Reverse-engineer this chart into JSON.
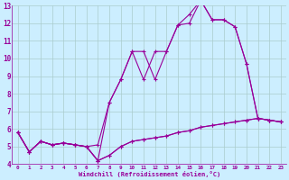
{
  "xlabel": "Windchill (Refroidissement éolien,°C)",
  "background_color": "#cceeff",
  "grid_color": "#aacccc",
  "line_color": "#990099",
  "xlim": [
    -0.5,
    23.5
  ],
  "ylim": [
    4,
    13
  ],
  "xticks": [
    0,
    1,
    2,
    3,
    4,
    5,
    6,
    7,
    8,
    9,
    10,
    11,
    12,
    13,
    14,
    15,
    16,
    17,
    18,
    19,
    20,
    21,
    22,
    23
  ],
  "yticks": [
    4,
    5,
    6,
    7,
    8,
    9,
    10,
    11,
    12,
    13
  ],
  "series1_x": [
    0,
    1,
    2,
    3,
    4,
    5,
    6,
    7,
    8,
    9,
    10,
    11,
    12,
    13,
    14,
    15,
    16,
    17,
    18,
    19,
    20,
    21,
    22,
    23
  ],
  "series1_y": [
    5.8,
    4.7,
    5.3,
    5.1,
    5.2,
    5.1,
    5.0,
    4.2,
    4.5,
    5.0,
    5.3,
    5.4,
    5.5,
    5.6,
    5.8,
    5.9,
    6.1,
    6.2,
    6.3,
    6.4,
    6.5,
    6.6,
    6.5,
    6.4
  ],
  "series2_x": [
    0,
    1,
    2,
    3,
    4,
    5,
    6,
    7,
    8,
    9,
    10,
    11,
    12,
    13,
    14,
    15,
    16,
    17,
    18,
    19,
    20,
    21,
    22,
    23
  ],
  "series2_y": [
    5.8,
    4.7,
    5.3,
    5.1,
    5.2,
    5.1,
    5.0,
    4.2,
    4.5,
    5.0,
    5.3,
    5.4,
    5.5,
    5.6,
    5.8,
    5.9,
    6.1,
    6.2,
    6.3,
    6.4,
    6.5,
    6.6,
    6.5,
    6.4
  ],
  "series3_x": [
    0,
    1,
    2,
    3,
    4,
    5,
    6,
    7,
    8,
    9,
    10,
    11,
    12,
    13,
    14,
    15,
    16,
    17,
    18,
    19,
    20,
    21,
    22,
    23
  ],
  "series3_y": [
    5.8,
    4.7,
    5.3,
    5.1,
    5.2,
    5.1,
    5.0,
    4.2,
    7.5,
    8.8,
    10.4,
    10.4,
    8.8,
    10.4,
    11.9,
    12.5,
    13.3,
    12.2,
    12.2,
    11.8,
    9.7,
    6.6,
    6.5,
    6.4
  ],
  "series4_x": [
    0,
    1,
    2,
    3,
    4,
    5,
    6,
    7,
    8,
    9,
    10,
    11,
    12,
    13,
    14,
    15,
    16,
    17,
    18,
    19,
    20,
    21,
    22,
    23
  ],
  "series4_y": [
    5.8,
    4.7,
    5.3,
    5.1,
    5.2,
    5.1,
    5.0,
    5.1,
    7.5,
    8.8,
    10.4,
    8.8,
    10.4,
    10.4,
    11.9,
    12.0,
    13.3,
    12.2,
    12.2,
    11.8,
    9.7,
    6.6,
    6.5,
    6.4
  ],
  "marker_size": 2.5,
  "linewidth": 0.8
}
